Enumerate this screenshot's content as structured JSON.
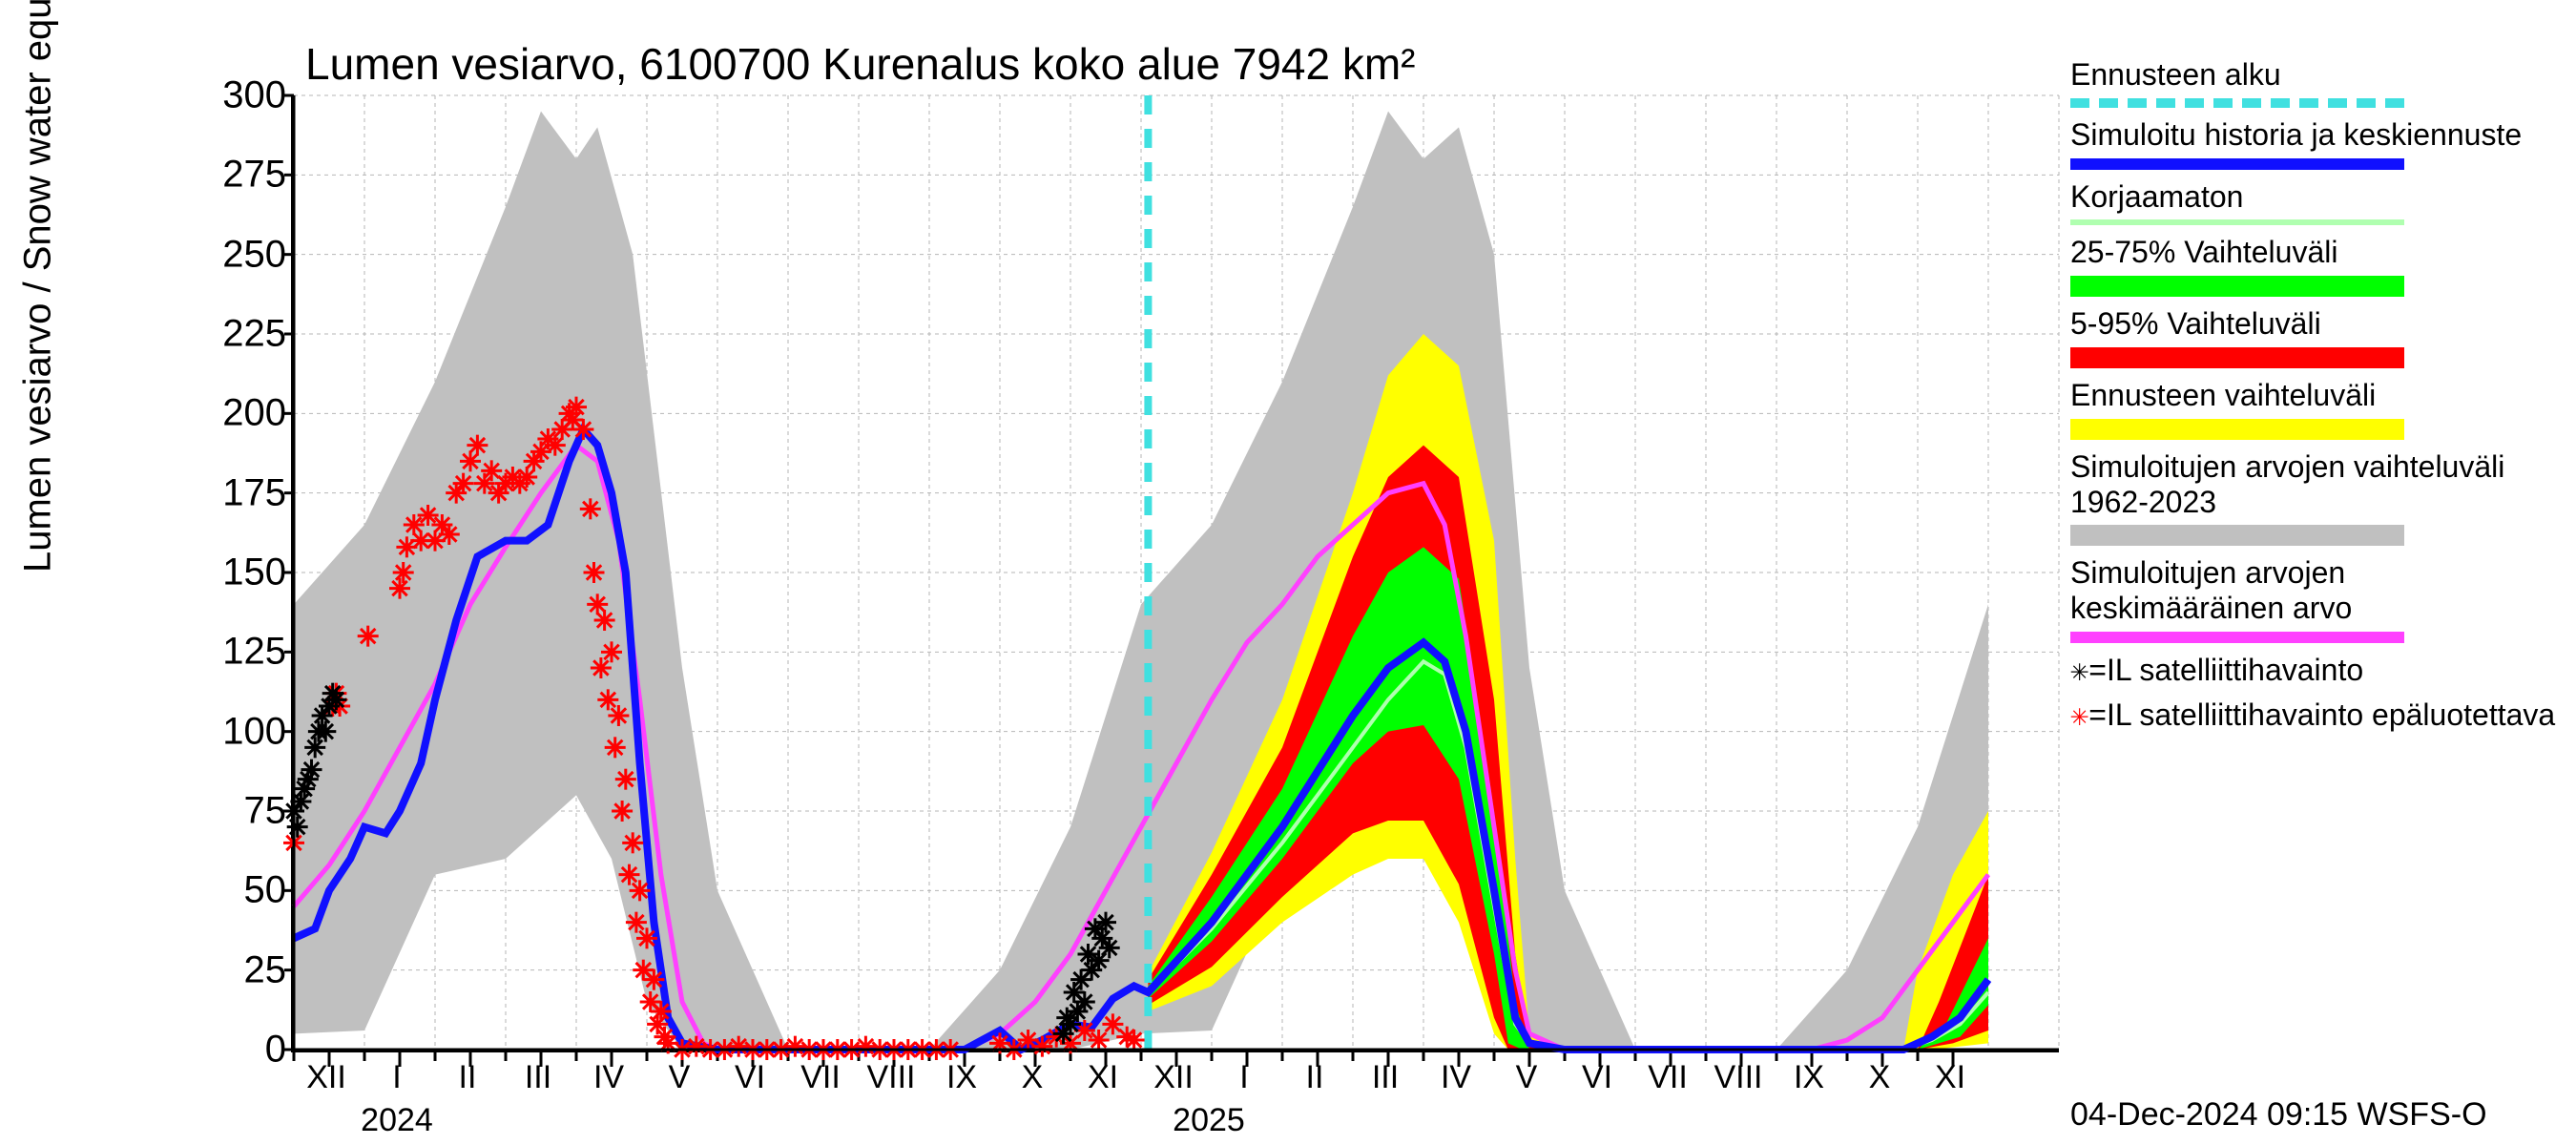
{
  "title": "Lumen vesiarvo, 6100700 Kurenalus koko alue 7942 km²",
  "y_axis_label": "Lumen vesiarvo / Snow water equiv.   mm",
  "footer": "04-Dec-2024 09:15 WSFS-O",
  "colors": {
    "bg": "#ffffff",
    "grid": "#b6b6b6",
    "axis": "#000000",
    "gray_band": "#c0c0c0",
    "yellow": "#ffff00",
    "red": "#ff0000",
    "green": "#00ff00",
    "blue": "#1010ff",
    "ltgreen": "#b0ffb0",
    "magenta": "#ff40ff",
    "cyan": "#40e0e0",
    "black": "#000000"
  },
  "ylim": [
    0,
    300
  ],
  "ytick_step": 25,
  "yticks": [
    "0",
    "25",
    "50",
    "75",
    "100",
    "125",
    "150",
    "175",
    "200",
    "225",
    "250",
    "275",
    "300"
  ],
  "x_span_months": 25,
  "x_start_month_idx": 0,
  "xticks": [
    "XII",
    "I",
    "II",
    "III",
    "IV",
    "V",
    "VI",
    "VII",
    "VIII",
    "IX",
    "X",
    "XI",
    "XII",
    "I",
    "II",
    "III",
    "IV",
    "V",
    "VI",
    "VII",
    "VIII",
    "IX",
    "X",
    "XI"
  ],
  "year_labels": [
    {
      "label": "2024",
      "month_idx": 1.5
    },
    {
      "label": "2025",
      "month_idx": 13.0
    }
  ],
  "forecast_start_month": 12.1,
  "legend": [
    {
      "label": "Ennusteen alku",
      "type": "dashed",
      "color": "#40e0e0"
    },
    {
      "label": "Simuloitu historia ja keskiennuste",
      "type": "line",
      "color": "#1010ff"
    },
    {
      "label": "Korjaamaton",
      "type": "line_thin",
      "color": "#b0ffb0"
    },
    {
      "label": "25-75% Vaihteluväli",
      "type": "band",
      "color": "#00ff00"
    },
    {
      "label": "5-95% Vaihteluväli",
      "type": "band",
      "color": "#ff0000"
    },
    {
      "label": "Ennusteen vaihteluväli",
      "type": "band",
      "color": "#ffff00"
    },
    {
      "label": "Simuloitujen arvojen vaihteluväli 1962-2023",
      "type": "band",
      "color": "#c0c0c0"
    },
    {
      "label": "Simuloitujen arvojen keskimääräinen arvo",
      "type": "line",
      "color": "#ff40ff"
    }
  ],
  "marker_legend": [
    {
      "sym": "✳",
      "color": "#000000",
      "label": "=IL satelliittihavainto"
    },
    {
      "sym": "✳",
      "color": "#ff0000",
      "label": "=IL satelliittihavainto epäluotettava"
    }
  ],
  "series": {
    "gray_hi": [
      [
        0,
        140
      ],
      [
        1,
        165
      ],
      [
        2,
        210
      ],
      [
        3,
        265
      ],
      [
        3.5,
        295
      ],
      [
        4,
        280
      ],
      [
        4.3,
        290
      ],
      [
        4.8,
        250
      ],
      [
        5.5,
        120
      ],
      [
        6,
        50
      ],
      [
        7,
        0
      ],
      [
        8,
        0
      ],
      [
        9,
        0
      ],
      [
        10,
        25
      ],
      [
        11,
        70
      ],
      [
        12,
        140
      ],
      [
        13,
        165
      ],
      [
        14,
        210
      ],
      [
        15,
        265
      ],
      [
        15.5,
        295
      ],
      [
        16,
        280
      ],
      [
        16.5,
        290
      ],
      [
        17,
        250
      ],
      [
        17.5,
        120
      ],
      [
        18,
        50
      ],
      [
        19,
        0
      ],
      [
        20,
        0
      ],
      [
        21,
        0
      ],
      [
        22,
        25
      ],
      [
        23,
        70
      ],
      [
        24,
        140
      ]
    ],
    "gray_lo": [
      [
        0,
        5
      ],
      [
        1,
        6
      ],
      [
        2,
        55
      ],
      [
        3,
        60
      ],
      [
        4,
        80
      ],
      [
        4.5,
        60
      ],
      [
        5,
        15
      ],
      [
        5.5,
        0
      ],
      [
        9,
        0
      ],
      [
        10,
        0
      ],
      [
        11,
        0
      ],
      [
        12,
        5
      ],
      [
        13,
        6
      ],
      [
        14,
        55
      ],
      [
        15,
        60
      ],
      [
        16,
        80
      ],
      [
        16.5,
        60
      ],
      [
        17,
        15
      ],
      [
        17.5,
        0
      ],
      [
        21,
        0
      ],
      [
        22,
        0
      ],
      [
        23,
        0
      ],
      [
        24,
        5
      ]
    ],
    "yellow_hi": [
      [
        12.1,
        24
      ],
      [
        13,
        62
      ],
      [
        14,
        110
      ],
      [
        15,
        175
      ],
      [
        15.5,
        212
      ],
      [
        16,
        225
      ],
      [
        16.5,
        215
      ],
      [
        17,
        160
      ],
      [
        17.3,
        60
      ],
      [
        17.5,
        5
      ],
      [
        18,
        0
      ],
      [
        22.8,
        0
      ],
      [
        23,
        25
      ],
      [
        23.5,
        55
      ],
      [
        24,
        75
      ]
    ],
    "yellow_lo": [
      [
        12.1,
        12
      ],
      [
        13,
        20
      ],
      [
        14,
        40
      ],
      [
        15,
        55
      ],
      [
        15.5,
        60
      ],
      [
        16,
        60
      ],
      [
        16.5,
        40
      ],
      [
        17,
        5
      ],
      [
        17.2,
        0
      ],
      [
        22.8,
        0
      ],
      [
        23.2,
        0
      ],
      [
        24,
        2
      ]
    ],
    "red_hi": [
      [
        12.1,
        22
      ],
      [
        13,
        55
      ],
      [
        14,
        95
      ],
      [
        15,
        155
      ],
      [
        15.5,
        180
      ],
      [
        16,
        190
      ],
      [
        16.5,
        180
      ],
      [
        17,
        110
      ],
      [
        17.3,
        30
      ],
      [
        17.5,
        2
      ],
      [
        18,
        0
      ],
      [
        23,
        0
      ],
      [
        23.3,
        15
      ],
      [
        24,
        55
      ]
    ],
    "red_lo": [
      [
        12.1,
        14
      ],
      [
        13,
        26
      ],
      [
        14,
        48
      ],
      [
        15,
        68
      ],
      [
        15.5,
        72
      ],
      [
        16,
        72
      ],
      [
        16.5,
        52
      ],
      [
        17,
        10
      ],
      [
        17.2,
        0
      ],
      [
        23,
        0
      ],
      [
        23.5,
        2
      ],
      [
        24,
        6
      ]
    ],
    "green_hi": [
      [
        12.1,
        20
      ],
      [
        13,
        48
      ],
      [
        14,
        82
      ],
      [
        15,
        130
      ],
      [
        15.5,
        150
      ],
      [
        16,
        158
      ],
      [
        16.5,
        148
      ],
      [
        17,
        75
      ],
      [
        17.3,
        15
      ],
      [
        17.5,
        0
      ],
      [
        23,
        0
      ],
      [
        23.4,
        8
      ],
      [
        24,
        35
      ]
    ],
    "green_lo": [
      [
        12.1,
        16
      ],
      [
        13,
        34
      ],
      [
        14,
        60
      ],
      [
        15,
        90
      ],
      [
        15.5,
        100
      ],
      [
        16,
        102
      ],
      [
        16.5,
        85
      ],
      [
        17,
        30
      ],
      [
        17.2,
        2
      ],
      [
        17.4,
        0
      ],
      [
        23,
        0
      ],
      [
        23.6,
        4
      ],
      [
        24,
        14
      ]
    ],
    "blue": [
      [
        0,
        35
      ],
      [
        0.3,
        38
      ],
      [
        0.5,
        50
      ],
      [
        0.8,
        60
      ],
      [
        1,
        70
      ],
      [
        1.3,
        68
      ],
      [
        1.5,
        75
      ],
      [
        1.8,
        90
      ],
      [
        2,
        110
      ],
      [
        2.3,
        135
      ],
      [
        2.6,
        155
      ],
      [
        3,
        160
      ],
      [
        3.3,
        160
      ],
      [
        3.6,
        165
      ],
      [
        3.9,
        185
      ],
      [
        4.1,
        195
      ],
      [
        4.3,
        190
      ],
      [
        4.5,
        175
      ],
      [
        4.7,
        150
      ],
      [
        4.9,
        90
      ],
      [
        5.1,
        40
      ],
      [
        5.3,
        10
      ],
      [
        5.5,
        2
      ],
      [
        6,
        0
      ],
      [
        9.5,
        0
      ],
      [
        10,
        6
      ],
      [
        10.3,
        0
      ],
      [
        10.6,
        3
      ],
      [
        11,
        8
      ],
      [
        11.3,
        7
      ],
      [
        11.6,
        16
      ],
      [
        11.9,
        20
      ],
      [
        12.1,
        18
      ],
      [
        13,
        40
      ],
      [
        14,
        70
      ],
      [
        15,
        105
      ],
      [
        15.5,
        120
      ],
      [
        16,
        128
      ],
      [
        16.3,
        122
      ],
      [
        16.6,
        100
      ],
      [
        17,
        50
      ],
      [
        17.3,
        10
      ],
      [
        17.5,
        2
      ],
      [
        18,
        0
      ],
      [
        22.8,
        0
      ],
      [
        23.2,
        4
      ],
      [
        23.6,
        10
      ],
      [
        24,
        22
      ]
    ],
    "uncorrected": [
      [
        12.1,
        18
      ],
      [
        13,
        38
      ],
      [
        14,
        65
      ],
      [
        15,
        95
      ],
      [
        15.5,
        110
      ],
      [
        16,
        122
      ],
      [
        16.3,
        118
      ],
      [
        16.6,
        95
      ],
      [
        17,
        45
      ],
      [
        17.3,
        8
      ],
      [
        17.5,
        2
      ],
      [
        18,
        0
      ],
      [
        22.8,
        0
      ],
      [
        23.2,
        3
      ],
      [
        23.6,
        8
      ],
      [
        24,
        18
      ]
    ],
    "magenta": [
      [
        0,
        45
      ],
      [
        0.5,
        58
      ],
      [
        1,
        75
      ],
      [
        1.5,
        95
      ],
      [
        2,
        115
      ],
      [
        2.5,
        140
      ],
      [
        3,
        158
      ],
      [
        3.5,
        175
      ],
      [
        4,
        190
      ],
      [
        4.3,
        185
      ],
      [
        4.6,
        160
      ],
      [
        4.9,
        110
      ],
      [
        5.2,
        55
      ],
      [
        5.5,
        15
      ],
      [
        5.8,
        2
      ],
      [
        6,
        0
      ],
      [
        9.5,
        0
      ],
      [
        10,
        5
      ],
      [
        10.5,
        15
      ],
      [
        11,
        30
      ],
      [
        11.5,
        50
      ],
      [
        12,
        70
      ],
      [
        12.5,
        90
      ],
      [
        13,
        110
      ],
      [
        13.5,
        128
      ],
      [
        14,
        140
      ],
      [
        14.5,
        155
      ],
      [
        15,
        165
      ],
      [
        15.5,
        175
      ],
      [
        16,
        178
      ],
      [
        16.3,
        165
      ],
      [
        16.6,
        130
      ],
      [
        17,
        70
      ],
      [
        17.3,
        25
      ],
      [
        17.5,
        5
      ],
      [
        18,
        0
      ],
      [
        21.5,
        0
      ],
      [
        22,
        3
      ],
      [
        22.5,
        10
      ],
      [
        23,
        25
      ],
      [
        23.5,
        40
      ],
      [
        24,
        55
      ]
    ],
    "sat_black": [
      [
        0.0,
        75
      ],
      [
        0.05,
        70
      ],
      [
        0.1,
        78
      ],
      [
        0.15,
        82
      ],
      [
        0.2,
        85
      ],
      [
        0.25,
        88
      ],
      [
        0.3,
        95
      ],
      [
        0.35,
        100
      ],
      [
        0.4,
        105
      ],
      [
        0.45,
        100
      ],
      [
        0.5,
        108
      ],
      [
        0.55,
        112
      ],
      [
        0.6,
        110
      ],
      [
        10.9,
        5
      ],
      [
        10.95,
        10
      ],
      [
        11.0,
        8
      ],
      [
        11.05,
        18
      ],
      [
        11.1,
        12
      ],
      [
        11.15,
        22
      ],
      [
        11.2,
        15
      ],
      [
        11.25,
        30
      ],
      [
        11.3,
        25
      ],
      [
        11.35,
        38
      ],
      [
        11.4,
        28
      ],
      [
        11.45,
        35
      ],
      [
        11.5,
        40
      ],
      [
        11.55,
        32
      ]
    ],
    "sat_red": [
      [
        0,
        65
      ],
      [
        0.55,
        108
      ],
      [
        0.6,
        112
      ],
      [
        0.65,
        108
      ],
      [
        1.05,
        130
      ],
      [
        1.5,
        145
      ],
      [
        1.55,
        150
      ],
      [
        1.6,
        158
      ],
      [
        1.7,
        165
      ],
      [
        1.8,
        160
      ],
      [
        1.9,
        168
      ],
      [
        2.0,
        160
      ],
      [
        2.1,
        165
      ],
      [
        2.2,
        162
      ],
      [
        2.3,
        175
      ],
      [
        2.4,
        178
      ],
      [
        2.5,
        185
      ],
      [
        2.6,
        190
      ],
      [
        2.7,
        178
      ],
      [
        2.8,
        182
      ],
      [
        2.9,
        175
      ],
      [
        3.0,
        178
      ],
      [
        3.1,
        180
      ],
      [
        3.2,
        178
      ],
      [
        3.3,
        180
      ],
      [
        3.4,
        185
      ],
      [
        3.5,
        188
      ],
      [
        3.6,
        192
      ],
      [
        3.7,
        190
      ],
      [
        3.8,
        195
      ],
      [
        3.9,
        200
      ],
      [
        3.95,
        198
      ],
      [
        4.0,
        202
      ],
      [
        4.1,
        195
      ],
      [
        4.2,
        170
      ],
      [
        4.25,
        150
      ],
      [
        4.3,
        140
      ],
      [
        4.35,
        120
      ],
      [
        4.4,
        135
      ],
      [
        4.45,
        110
      ],
      [
        4.5,
        125
      ],
      [
        4.55,
        95
      ],
      [
        4.6,
        105
      ],
      [
        4.65,
        75
      ],
      [
        4.7,
        85
      ],
      [
        4.75,
        55
      ],
      [
        4.8,
        65
      ],
      [
        4.85,
        40
      ],
      [
        4.9,
        50
      ],
      [
        4.95,
        25
      ],
      [
        5.0,
        35
      ],
      [
        5.05,
        15
      ],
      [
        5.1,
        22
      ],
      [
        5.15,
        8
      ],
      [
        5.2,
        12
      ],
      [
        5.25,
        4
      ],
      [
        5.3,
        2
      ],
      [
        5.5,
        0
      ],
      [
        5.7,
        1
      ],
      [
        5.9,
        0
      ],
      [
        6.1,
        0
      ],
      [
        6.3,
        1
      ],
      [
        6.5,
        0
      ],
      [
        6.7,
        0
      ],
      [
        6.9,
        0
      ],
      [
        7.1,
        1
      ],
      [
        7.3,
        0
      ],
      [
        7.5,
        0
      ],
      [
        7.7,
        0
      ],
      [
        7.9,
        0
      ],
      [
        8.1,
        1
      ],
      [
        8.3,
        0
      ],
      [
        8.5,
        0
      ],
      [
        8.7,
        0
      ],
      [
        8.9,
        0
      ],
      [
        9.1,
        0
      ],
      [
        9.3,
        0
      ],
      [
        10.0,
        2
      ],
      [
        10.2,
        0
      ],
      [
        10.4,
        3
      ],
      [
        10.6,
        1
      ],
      [
        10.8,
        4
      ],
      [
        11.0,
        2
      ],
      [
        11.2,
        6
      ],
      [
        11.4,
        3
      ],
      [
        11.6,
        8
      ],
      [
        11.8,
        4
      ],
      [
        11.9,
        3
      ]
    ]
  }
}
